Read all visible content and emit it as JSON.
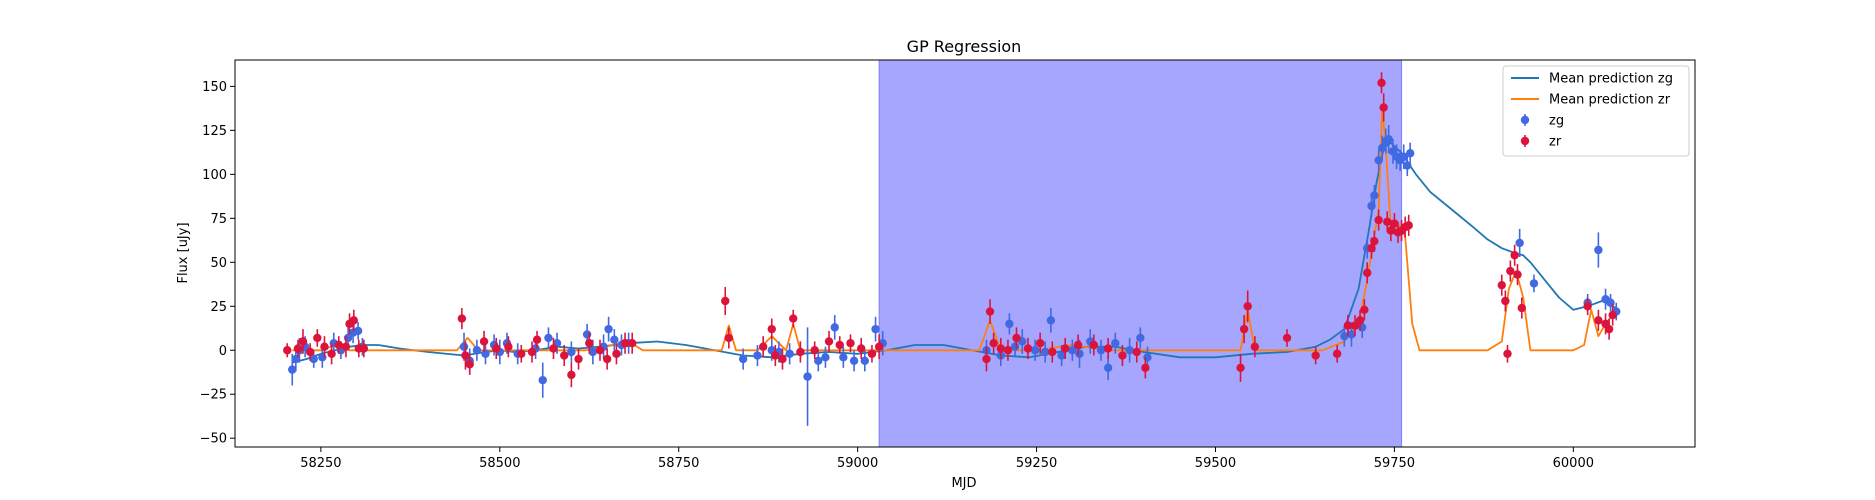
{
  "chart_data": {
    "type": "scatter",
    "title": "GP Regression",
    "xlabel": "MJD",
    "ylabel": "Flux [uJy]",
    "xlim": [
      58130,
      60170
    ],
    "ylim": [
      -55,
      165
    ],
    "xticks": [
      58250,
      58500,
      58750,
      59000,
      59250,
      59500,
      59750,
      60000
    ],
    "yticks": [
      -50,
      -25,
      0,
      25,
      50,
      75,
      100,
      125,
      150
    ],
    "highlight_span": {
      "x0": 59030,
      "x1": 59760,
      "color": "#a6a6ff"
    },
    "legend": {
      "placement": "upper-right",
      "entries": [
        "Mean prediction zg",
        "Mean prediction zr",
        "zg",
        "zr"
      ]
    },
    "lines": [
      {
        "name": "Mean prediction zg",
        "color": "#1f77b4",
        "x": [
          58210,
          58230,
          58250,
          58270,
          58290,
          58310,
          58330,
          58360,
          58400,
          58450,
          58480,
          58500,
          58520,
          58550,
          58580,
          58610,
          58640,
          58680,
          58720,
          58760,
          58800,
          58840,
          58880,
          58920,
          58960,
          59000,
          59040,
          59080,
          59120,
          59160,
          59200,
          59240,
          59280,
          59320,
          59360,
          59400,
          59450,
          59500,
          59550,
          59600,
          59640,
          59660,
          59680,
          59700,
          59715,
          59725,
          59735,
          59745,
          59760,
          59780,
          59800,
          59830,
          59860,
          59880,
          59900,
          59920,
          59930,
          59940,
          59960,
          59980,
          60000,
          60020,
          60040,
          60060
        ],
        "y": [
          -7,
          -5,
          -2,
          0,
          2,
          3,
          3,
          1,
          -1,
          -3,
          -1,
          0,
          -1,
          0,
          2,
          1,
          2,
          4,
          5,
          3,
          0,
          -3,
          -4,
          -2,
          -1,
          -2,
          0,
          3,
          3,
          0,
          -3,
          -4,
          -1,
          2,
          2,
          -1,
          -4,
          -4,
          -2,
          -1,
          2,
          6,
          12,
          35,
          70,
          95,
          115,
          118,
          112,
          100,
          90,
          80,
          70,
          63,
          58,
          55,
          54,
          50,
          40,
          30,
          23,
          25,
          28,
          24
        ]
      },
      {
        "name": "Mean prediction zr",
        "color": "#ff7f0e",
        "x": [
          58210,
          58230,
          58250,
          58270,
          58290,
          58310,
          58330,
          58400,
          58440,
          58455,
          58470,
          58500,
          58560,
          58620,
          58660,
          58680,
          58700,
          58780,
          58810,
          58820,
          58830,
          58860,
          58880,
          58900,
          58910,
          58920,
          58960,
          59000,
          59060,
          59100,
          59170,
          59185,
          59200,
          59250,
          59300,
          59350,
          59400,
          59420,
          59500,
          59535,
          59545,
          59555,
          59600,
          59650,
          59680,
          59700,
          59712,
          59720,
          59728,
          59733,
          59738,
          59745,
          59755,
          59765,
          59775,
          59785,
          59800,
          59880,
          59900,
          59910,
          59920,
          59930,
          59940,
          59960,
          60000,
          60015,
          60025,
          60035,
          60045,
          60055
        ],
        "y": [
          0,
          0,
          0,
          3,
          0,
          0,
          0,
          0,
          0,
          7,
          0,
          0,
          0,
          0,
          3,
          5,
          0,
          0,
          0,
          14,
          0,
          0,
          8,
          0,
          15,
          0,
          0,
          0,
          0,
          0,
          0,
          17,
          0,
          0,
          3,
          0,
          0,
          0,
          0,
          0,
          23,
          0,
          0,
          0,
          5,
          15,
          40,
          60,
          80,
          138,
          115,
          70,
          72,
          65,
          15,
          0,
          0,
          0,
          5,
          35,
          45,
          30,
          0,
          0,
          0,
          3,
          23,
          8,
          15,
          20
        ]
      }
    ],
    "series": [
      {
        "name": "zg",
        "color": "#4169e1",
        "points": [
          [
            58210,
            -11,
            9
          ],
          [
            58215,
            -5,
            7
          ],
          [
            58220,
            0,
            7
          ],
          [
            58228,
            2,
            6
          ],
          [
            58240,
            -5,
            5
          ],
          [
            58252,
            -4,
            6
          ],
          [
            58268,
            4,
            6
          ],
          [
            58278,
            0,
            5
          ],
          [
            58288,
            7,
            6
          ],
          [
            58295,
            10,
            6
          ],
          [
            58302,
            11,
            5
          ],
          [
            58308,
            2,
            5
          ],
          [
            58450,
            2,
            8
          ],
          [
            58458,
            -6,
            7
          ],
          [
            58468,
            0,
            6
          ],
          [
            58480,
            -2,
            6
          ],
          [
            58492,
            3,
            6
          ],
          [
            58500,
            -1,
            7
          ],
          [
            58510,
            4,
            6
          ],
          [
            58525,
            -2,
            6
          ],
          [
            58550,
            1,
            6
          ],
          [
            58560,
            -17,
            10
          ],
          [
            58568,
            7,
            6
          ],
          [
            58580,
            4,
            6
          ],
          [
            58600,
            -1,
            6
          ],
          [
            58622,
            9,
            6
          ],
          [
            58630,
            -1,
            7
          ],
          [
            58645,
            2,
            7
          ],
          [
            58652,
            12,
            7
          ],
          [
            58660,
            6,
            6
          ],
          [
            58670,
            3,
            6
          ],
          [
            58680,
            4,
            6
          ],
          [
            58840,
            -5,
            6
          ],
          [
            58860,
            -3,
            6
          ],
          [
            58880,
            0,
            6
          ],
          [
            58890,
            -1,
            6
          ],
          [
            58905,
            -2,
            6
          ],
          [
            58930,
            -15,
            28
          ],
          [
            58945,
            -6,
            6
          ],
          [
            58955,
            -4,
            6
          ],
          [
            58968,
            13,
            7
          ],
          [
            58980,
            -4,
            6
          ],
          [
            58995,
            -6,
            6
          ],
          [
            59010,
            -6,
            6
          ],
          [
            59025,
            12,
            7
          ],
          [
            59035,
            4,
            7
          ],
          [
            59180,
            0,
            6
          ],
          [
            59200,
            -3,
            6
          ],
          [
            59212,
            15,
            6
          ],
          [
            59220,
            2,
            6
          ],
          [
            59230,
            5,
            7
          ],
          [
            59248,
            0,
            6
          ],
          [
            59262,
            -1,
            6
          ],
          [
            59270,
            17,
            7
          ],
          [
            59285,
            -3,
            6
          ],
          [
            59300,
            0,
            6
          ],
          [
            59310,
            -2,
            8
          ],
          [
            59325,
            5,
            7
          ],
          [
            59340,
            0,
            6
          ],
          [
            59350,
            -10,
            7
          ],
          [
            59360,
            4,
            6
          ],
          [
            59380,
            0,
            7
          ],
          [
            59395,
            7,
            6
          ],
          [
            59405,
            -4,
            6
          ],
          [
            59680,
            8,
            6
          ],
          [
            59690,
            9,
            7
          ],
          [
            59705,
            13,
            6
          ],
          [
            59712,
            58,
            6
          ],
          [
            59718,
            82,
            6
          ],
          [
            59722,
            88,
            6
          ],
          [
            59728,
            108,
            6
          ],
          [
            59733,
            115,
            7
          ],
          [
            59738,
            119,
            7
          ],
          [
            59742,
            120,
            8
          ],
          [
            59748,
            113,
            7
          ],
          [
            59753,
            110,
            7
          ],
          [
            59758,
            108,
            6
          ],
          [
            59763,
            110,
            7
          ],
          [
            59768,
            105,
            6
          ],
          [
            59772,
            112,
            6
          ],
          [
            59925,
            61,
            8
          ],
          [
            59945,
            38,
            5
          ],
          [
            60020,
            27,
            5
          ],
          [
            60035,
            57,
            10
          ],
          [
            60045,
            29,
            6
          ],
          [
            60052,
            27,
            5
          ],
          [
            60060,
            22,
            5
          ]
        ]
      },
      {
        "name": "zr",
        "color": "#dc143c",
        "points": [
          [
            58203,
            0,
            4
          ],
          [
            58218,
            1,
            5
          ],
          [
            58225,
            5,
            7
          ],
          [
            58235,
            -1,
            5
          ],
          [
            58245,
            7,
            5
          ],
          [
            58255,
            2,
            6
          ],
          [
            58265,
            -2,
            6
          ],
          [
            58275,
            3,
            5
          ],
          [
            58285,
            2,
            6
          ],
          [
            58290,
            15,
            6
          ],
          [
            58296,
            17,
            6
          ],
          [
            58303,
            1,
            5
          ],
          [
            58310,
            1,
            5
          ],
          [
            58447,
            18,
            6
          ],
          [
            58452,
            -3,
            8
          ],
          [
            58458,
            -8,
            6
          ],
          [
            58478,
            5,
            6
          ],
          [
            58495,
            1,
            6
          ],
          [
            58512,
            2,
            6
          ],
          [
            58530,
            -2,
            5
          ],
          [
            58545,
            -1,
            6
          ],
          [
            58552,
            6,
            5
          ],
          [
            58575,
            1,
            6
          ],
          [
            58590,
            -3,
            6
          ],
          [
            58600,
            -14,
            7
          ],
          [
            58610,
            -5,
            6
          ],
          [
            58625,
            4,
            6
          ],
          [
            58640,
            0,
            6
          ],
          [
            58650,
            -5,
            6
          ],
          [
            58663,
            -2,
            6
          ],
          [
            58675,
            4,
            6
          ],
          [
            58685,
            4,
            6
          ],
          [
            58815,
            28,
            8
          ],
          [
            58820,
            7,
            6
          ],
          [
            58868,
            2,
            6
          ],
          [
            58880,
            12,
            6
          ],
          [
            58885,
            -3,
            6
          ],
          [
            58895,
            -5,
            6
          ],
          [
            58910,
            18,
            5
          ],
          [
            58920,
            -1,
            6
          ],
          [
            58940,
            0,
            5
          ],
          [
            58960,
            5,
            6
          ],
          [
            58975,
            3,
            5
          ],
          [
            58990,
            4,
            5
          ],
          [
            59005,
            1,
            6
          ],
          [
            59020,
            -2,
            5
          ],
          [
            59030,
            2,
            7
          ],
          [
            59180,
            -5,
            7
          ],
          [
            59185,
            22,
            7
          ],
          [
            59190,
            4,
            6
          ],
          [
            59200,
            1,
            6
          ],
          [
            59210,
            0,
            6
          ],
          [
            59222,
            7,
            6
          ],
          [
            59238,
            1,
            6
          ],
          [
            59255,
            4,
            6
          ],
          [
            59272,
            -1,
            6
          ],
          [
            59290,
            1,
            6
          ],
          [
            59308,
            3,
            6
          ],
          [
            59330,
            3,
            6
          ],
          [
            59350,
            1,
            6
          ],
          [
            59370,
            -3,
            6
          ],
          [
            59390,
            -1,
            6
          ],
          [
            59402,
            -10,
            6
          ],
          [
            59535,
            -10,
            8
          ],
          [
            59540,
            12,
            8
          ],
          [
            59545,
            25,
            9
          ],
          [
            59555,
            2,
            6
          ],
          [
            59600,
            7,
            5
          ],
          [
            59640,
            -3,
            5
          ],
          [
            59670,
            -2,
            5
          ],
          [
            59685,
            14,
            6
          ],
          [
            59695,
            14,
            6
          ],
          [
            59702,
            17,
            6
          ],
          [
            59708,
            23,
            6
          ],
          [
            59712,
            44,
            6
          ],
          [
            59718,
            58,
            6
          ],
          [
            59722,
            62,
            6
          ],
          [
            59728,
            74,
            6
          ],
          [
            59732,
            152,
            6
          ],
          [
            59735,
            138,
            8
          ],
          [
            59740,
            73,
            6
          ],
          [
            59745,
            68,
            6
          ],
          [
            59750,
            72,
            6
          ],
          [
            59755,
            67,
            6
          ],
          [
            59760,
            68,
            6
          ],
          [
            59765,
            70,
            6
          ],
          [
            59770,
            71,
            6
          ],
          [
            59900,
            37,
            6
          ],
          [
            59905,
            28,
            6
          ],
          [
            59908,
            -2,
            5
          ],
          [
            59912,
            45,
            6
          ],
          [
            59918,
            54,
            6
          ],
          [
            59922,
            43,
            6
          ],
          [
            59928,
            24,
            6
          ],
          [
            60020,
            25,
            5
          ],
          [
            60035,
            17,
            6
          ],
          [
            60045,
            15,
            6
          ],
          [
            60050,
            12,
            6
          ],
          [
            60055,
            20,
            6
          ]
        ]
      }
    ]
  }
}
